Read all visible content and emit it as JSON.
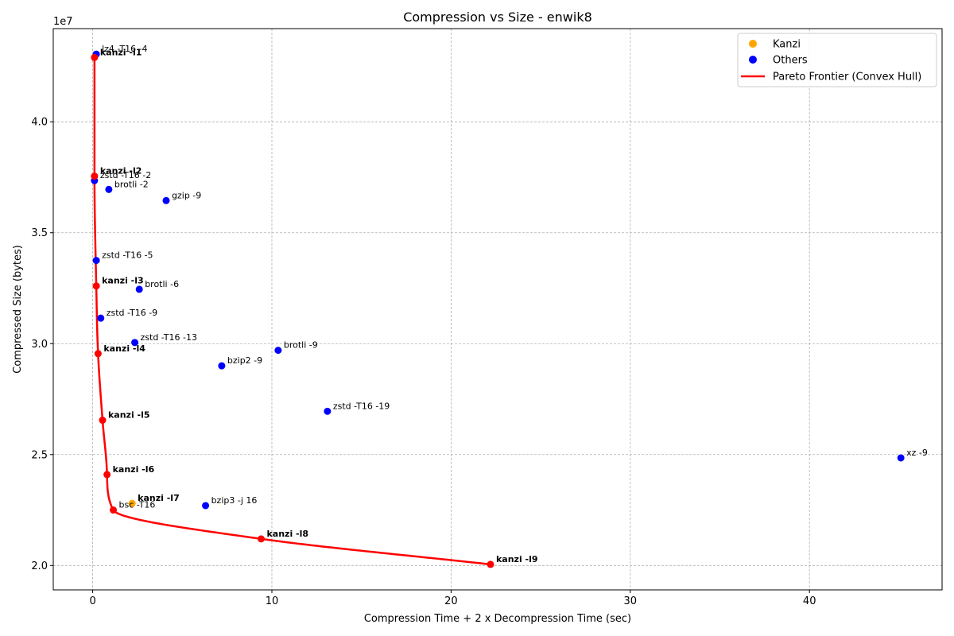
{
  "chart_data": {
    "type": "scatter",
    "title": "Compression vs Size - enwik8",
    "xlabel": "Compression Time + 2 x Decompression Time (sec)",
    "ylabel": "Compressed Size (bytes)",
    "y_offset_label": "1e7",
    "xlim": [
      -2.2,
      47.4
    ],
    "ylim": [
      18900000,
      44200000
    ],
    "x_ticks": [
      0,
      10,
      20,
      30,
      40
    ],
    "y_ticks": [
      20000000,
      25000000,
      30000000,
      35000000,
      40000000
    ],
    "x_tick_labels": [
      "0",
      "10",
      "20",
      "30",
      "40"
    ],
    "y_tick_labels": [
      "2.0",
      "2.5",
      "3.0",
      "3.5",
      "4.0"
    ],
    "grid": true,
    "legend_position": "top-right",
    "colors": {
      "kanzi": "#ffa500",
      "others": "#0000ff",
      "frontier": "#ff0000"
    },
    "series": [
      {
        "name": "Kanzi",
        "points": [
          {
            "label": "kanzi -l1",
            "x": 0.1,
            "y": 42900000
          },
          {
            "label": "kanzi -l2",
            "x": 0.1,
            "y": 37550000
          },
          {
            "label": "kanzi -l3",
            "x": 0.2,
            "y": 32600000
          },
          {
            "label": "kanzi -l4",
            "x": 0.3,
            "y": 29550000
          },
          {
            "label": "kanzi -l5",
            "x": 0.55,
            "y": 26550000
          },
          {
            "label": "kanzi -l6",
            "x": 0.8,
            "y": 24100000
          },
          {
            "label": "kanzi -l7",
            "x": 2.2,
            "y": 22800000
          },
          {
            "label": "kanzi -l8",
            "x": 9.4,
            "y": 21200000
          },
          {
            "label": "kanzi -l9",
            "x": 22.2,
            "y": 20050000
          }
        ]
      },
      {
        "name": "Others",
        "points": [
          {
            "label": "lz4 -T16 -4",
            "x": 0.2,
            "y": 43050000
          },
          {
            "label": "zstd -T16 -2",
            "x": 0.1,
            "y": 37350000
          },
          {
            "label": "brotli -2",
            "x": 0.9,
            "y": 36950000
          },
          {
            "label": "gzip -9",
            "x": 4.1,
            "y": 36450000
          },
          {
            "label": "zstd -T16 -5",
            "x": 0.2,
            "y": 33750000
          },
          {
            "label": "brotli -6",
            "x": 2.6,
            "y": 32450000
          },
          {
            "label": "zstd -T16 -9",
            "x": 0.45,
            "y": 31150000
          },
          {
            "label": "zstd -T16 -13",
            "x": 2.35,
            "y": 30050000
          },
          {
            "label": "brotli -9",
            "x": 10.35,
            "y": 29700000
          },
          {
            "label": "bzip2 -9",
            "x": 7.2,
            "y": 29000000
          },
          {
            "label": "zstd -T16 -19",
            "x": 13.1,
            "y": 26950000
          },
          {
            "label": "xz -9",
            "x": 45.1,
            "y": 24850000
          },
          {
            "label": "bzip3 -j 16",
            "x": 6.3,
            "y": 22700000
          },
          {
            "label": "bsc -T16",
            "x": 1.15,
            "y": 22500000
          }
        ]
      }
    ],
    "frontier": {
      "name": "Pareto Frontier (Convex Hull)",
      "points": [
        {
          "x": 0.1,
          "y": 42900000
        },
        {
          "x": 0.1,
          "y": 37550000
        },
        {
          "x": 0.2,
          "y": 32600000
        },
        {
          "x": 0.3,
          "y": 29550000
        },
        {
          "x": 0.55,
          "y": 26550000
        },
        {
          "x": 0.8,
          "y": 24100000
        },
        {
          "x": 1.15,
          "y": 22500000
        },
        {
          "x": 9.4,
          "y": 21200000
        },
        {
          "x": 22.2,
          "y": 20050000
        }
      ]
    },
    "legend": [
      "Kanzi",
      "Others",
      "Pareto Frontier (Convex Hull)"
    ]
  }
}
